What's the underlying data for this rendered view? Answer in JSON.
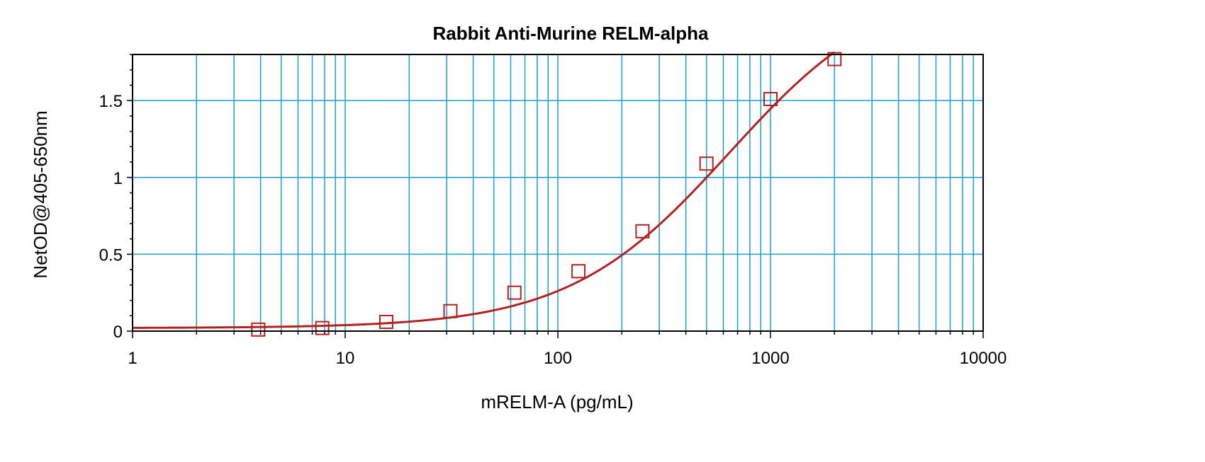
{
  "chart_data": {
    "type": "line",
    "title": "Rabbit Anti-Murine RELM-alpha",
    "xlabel": "mRELM-A (pg/mL)",
    "ylabel": "NetOD@405-650nm",
    "x_scale": "log",
    "xlim": [
      1,
      10000
    ],
    "ylim": [
      0,
      1.8
    ],
    "x_ticks": [
      {
        "value": 1,
        "label": "1"
      },
      {
        "value": 10,
        "label": "10"
      },
      {
        "value": 100,
        "label": "100"
      },
      {
        "value": 1000,
        "label": "1000"
      },
      {
        "value": 10000,
        "label": "10000"
      }
    ],
    "y_ticks": [
      {
        "value": 0,
        "label": "0"
      },
      {
        "value": 0.5,
        "label": "0.5"
      },
      {
        "value": 1,
        "label": "1"
      },
      {
        "value": 1.5,
        "label": "1.5"
      }
    ],
    "grid": true,
    "legend": "none",
    "colors": {
      "curve": "#b22222",
      "grid": "#1aa0c8",
      "axis": "#000000"
    },
    "series": [
      {
        "marker": "open-square",
        "x": [
          3.9,
          7.8,
          15.6,
          31.25,
          62.5,
          125,
          250,
          500,
          1000,
          2000
        ],
        "y": [
          0.01,
          0.02,
          0.06,
          0.13,
          0.25,
          0.39,
          0.65,
          1.09,
          1.51,
          1.77
        ]
      }
    ],
    "fit_curve": {
      "type": "4PL",
      "bottom": 0.02,
      "top": 2.3,
      "ec50": 640,
      "hill": 1.15
    }
  }
}
